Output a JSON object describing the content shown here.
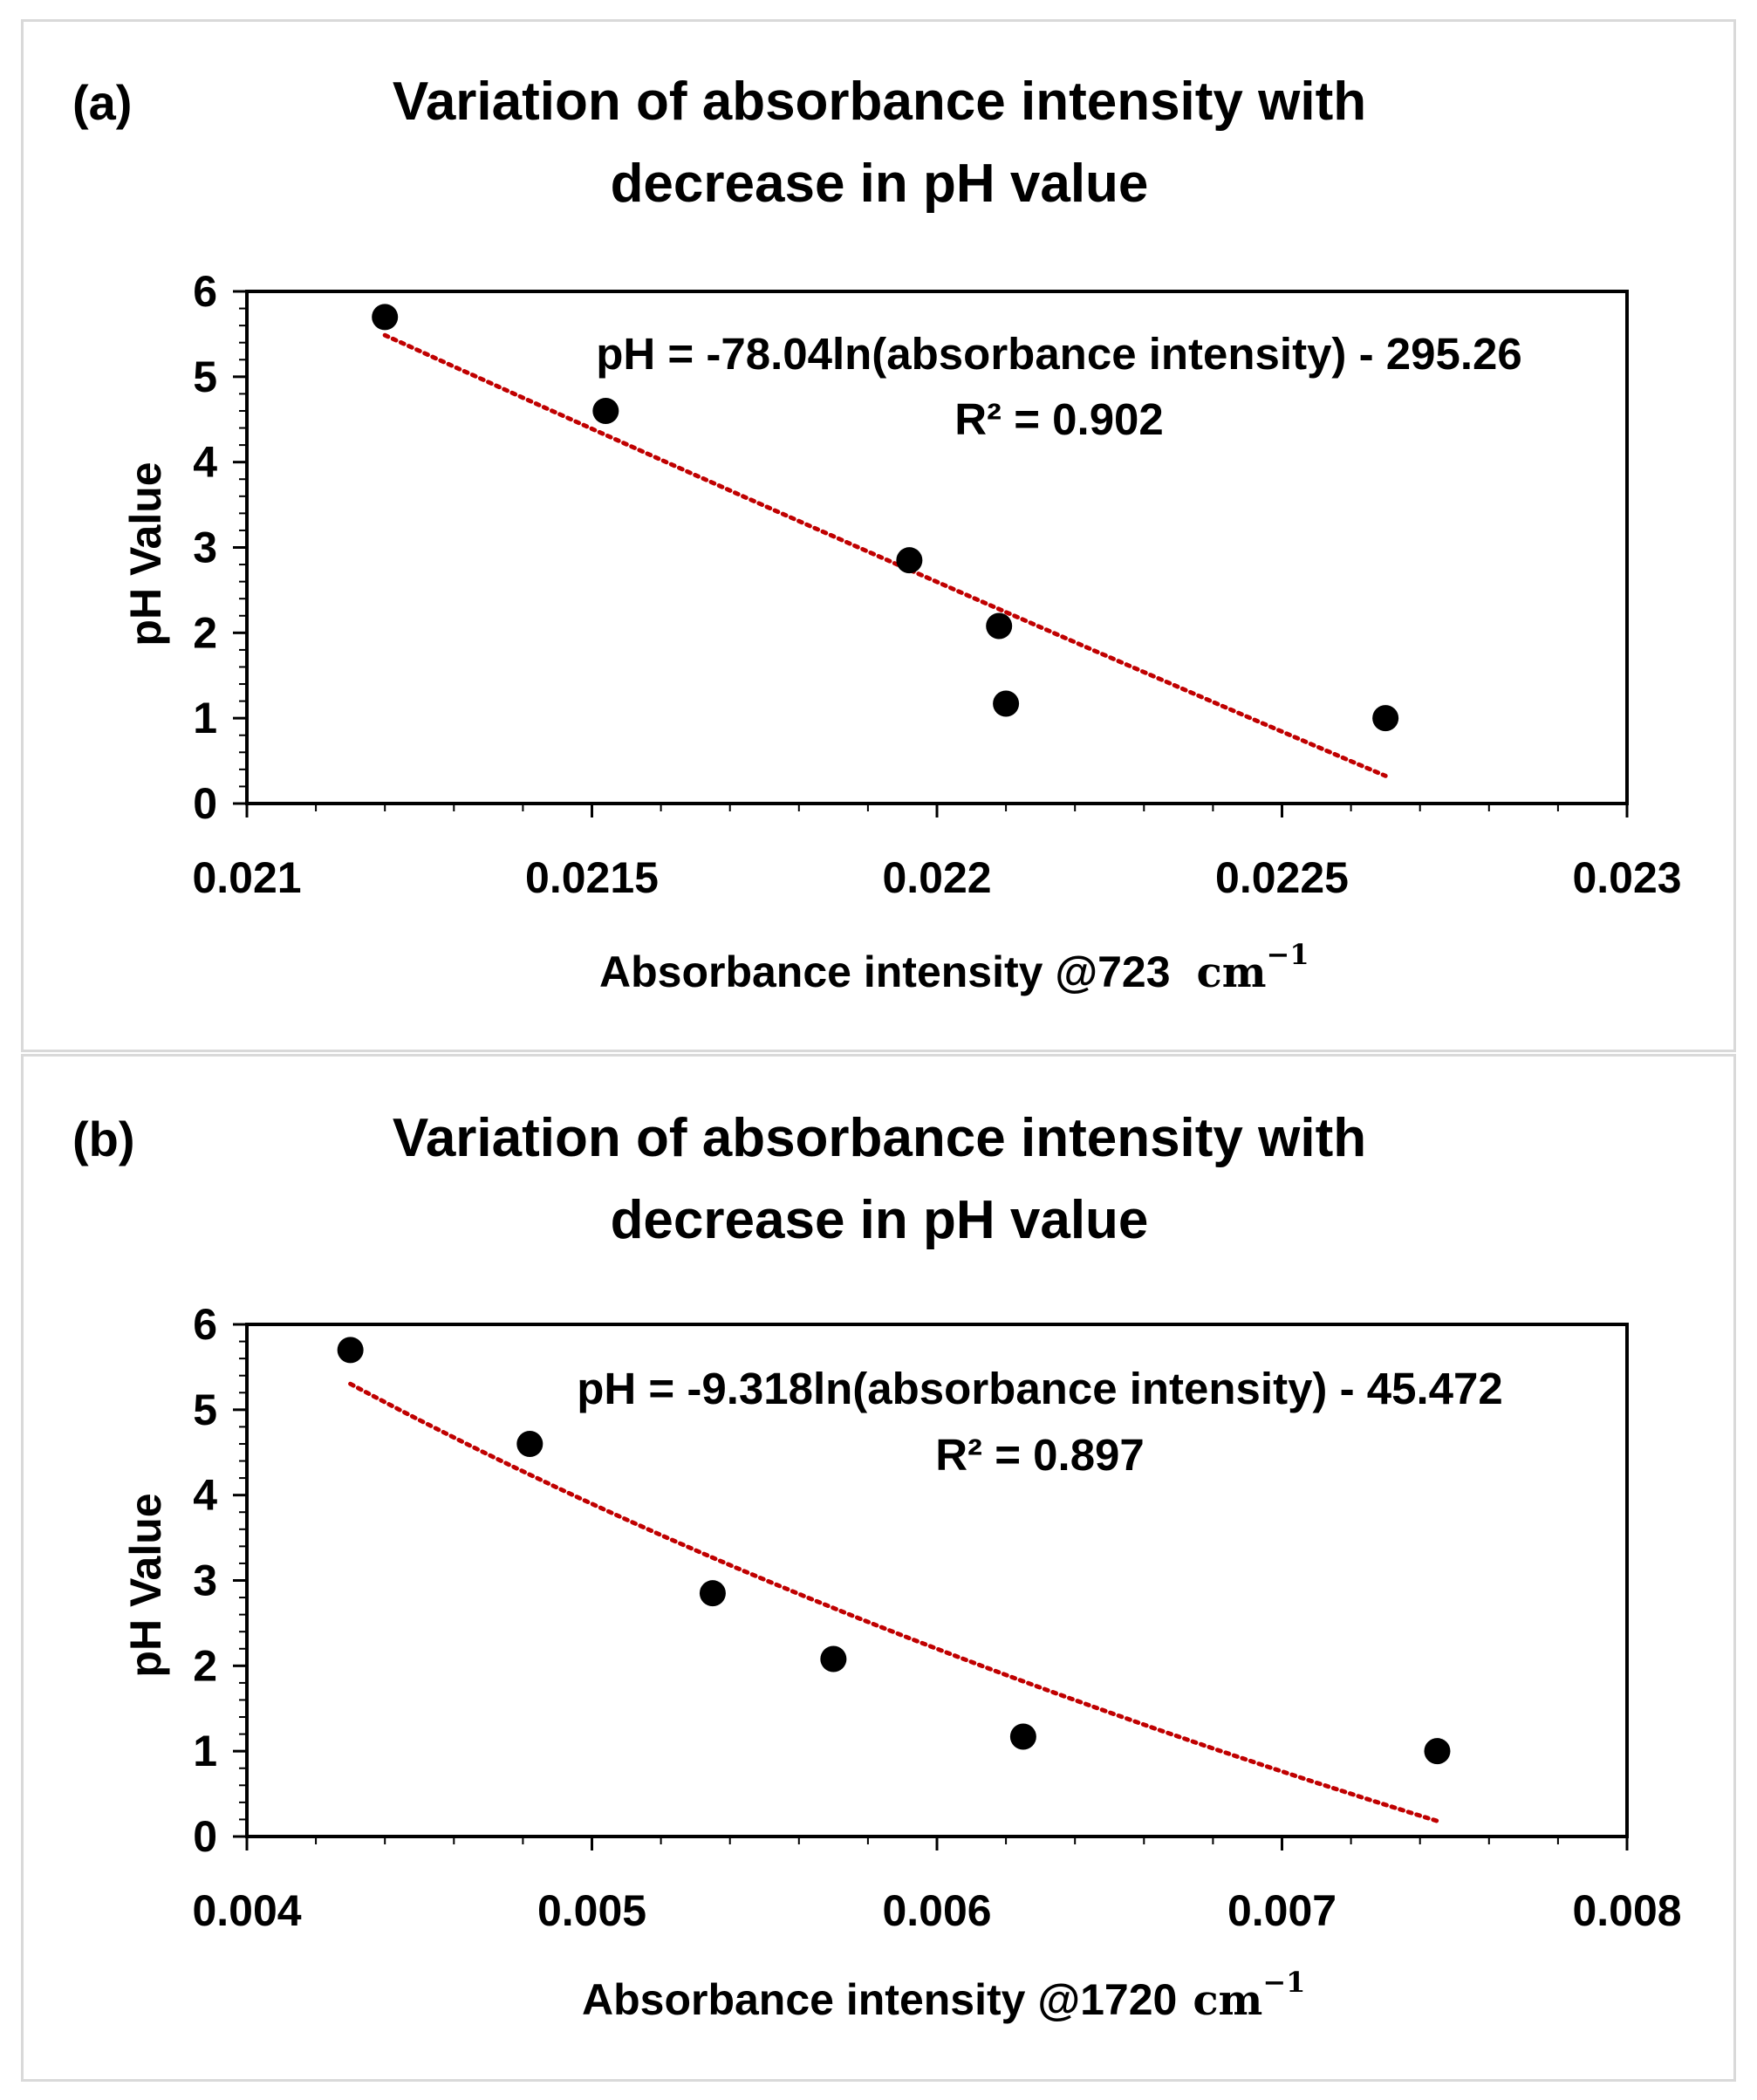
{
  "colors": {
    "points": "#000000",
    "trendline": "#c00000",
    "frame": "#000000",
    "panel_border": "#d9d9d9"
  },
  "chart_data": [
    {
      "type": "scatter",
      "panel_label": "(a)",
      "title_line1": "Variation of absorbance intensity with",
      "title_line2": "decrease in pH value",
      "xlabel": "Absorbance intensity @723",
      "xlabel_unit": "cm",
      "xlabel_unit_exp": "−1",
      "ylabel": "pH Value",
      "xlim": [
        0.021,
        0.023
      ],
      "ylim": [
        0,
        6
      ],
      "xticks": [
        0.021,
        0.0215,
        0.022,
        0.0225,
        0.023
      ],
      "xtick_labels": [
        "0.021",
        "0.0215",
        "0.022",
        "0.0225",
        "0.023"
      ],
      "yticks": [
        0,
        1,
        2,
        3,
        4,
        5,
        6
      ],
      "ytick_labels": [
        "0",
        "1",
        "2",
        "3",
        "4",
        "5",
        "6"
      ],
      "points": [
        {
          "x": 0.0212,
          "y": 5.7
        },
        {
          "x": 0.02152,
          "y": 4.6
        },
        {
          "x": 0.02196,
          "y": 2.85
        },
        {
          "x": 0.02209,
          "y": 2.08
        },
        {
          "x": 0.0221,
          "y": 1.17
        },
        {
          "x": 0.02265,
          "y": 1.0
        }
      ],
      "trendline": {
        "type": "log",
        "a": -78.04,
        "b": -295.26,
        "x_range": [
          0.0212,
          0.02265
        ]
      },
      "equation": "pH = -78.04ln(absorbance intensity) - 295.26",
      "r2": "R² = 0.902"
    },
    {
      "type": "scatter",
      "panel_label": "(b)",
      "title_line1": "Variation of absorbance intensity with",
      "title_line2": "decrease in pH value",
      "xlabel": "Absorbance intensity @1720",
      "xlabel_unit": "cm",
      "xlabel_unit_exp": "−1",
      "ylabel": "pH Value",
      "xlim": [
        0.004,
        0.008
      ],
      "ylim": [
        0,
        6
      ],
      "xticks": [
        0.004,
        0.005,
        0.006,
        0.007,
        0.008
      ],
      "xtick_labels": [
        "0.004",
        "0.005",
        "0.006",
        "0.007",
        "0.008"
      ],
      "yticks": [
        0,
        1,
        2,
        3,
        4,
        5,
        6
      ],
      "ytick_labels": [
        "0",
        "1",
        "2",
        "3",
        "4",
        "5",
        "6"
      ],
      "points": [
        {
          "x": 0.0043,
          "y": 5.7
        },
        {
          "x": 0.00482,
          "y": 4.6
        },
        {
          "x": 0.00535,
          "y": 2.85
        },
        {
          "x": 0.0057,
          "y": 2.08
        },
        {
          "x": 0.00625,
          "y": 1.17
        },
        {
          "x": 0.00745,
          "y": 1.0
        }
      ],
      "trendline": {
        "type": "log",
        "a": -9.318,
        "b": -45.472,
        "x_range": [
          0.0043,
          0.00745
        ]
      },
      "equation": "pH = -9.318ln(absorbance intensity) - 45.472",
      "r2": "R² = 0.897"
    }
  ]
}
